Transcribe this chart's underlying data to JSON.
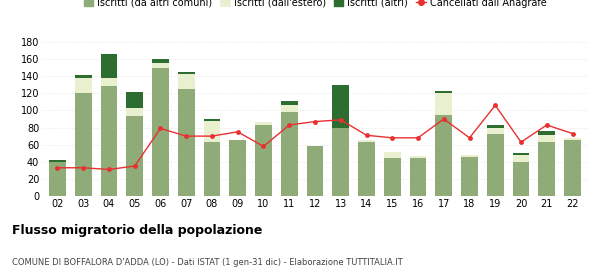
{
  "years": [
    "02",
    "03",
    "04",
    "05",
    "06",
    "07",
    "08",
    "09",
    "10",
    "11",
    "12",
    "13",
    "14",
    "15",
    "16",
    "17",
    "18",
    "19",
    "20",
    "21",
    "22"
  ],
  "iscritti_comuni": [
    40,
    120,
    128,
    93,
    150,
    125,
    63,
    65,
    83,
    98,
    58,
    80,
    63,
    44,
    45,
    95,
    46,
    72,
    40,
    63,
    65
  ],
  "iscritti_estero": [
    0,
    18,
    10,
    10,
    5,
    18,
    25,
    0,
    3,
    8,
    0,
    0,
    2,
    7,
    2,
    25,
    2,
    8,
    8,
    8,
    3
  ],
  "iscritti_altri": [
    2,
    3,
    28,
    18,
    5,
    2,
    2,
    0,
    0,
    5,
    0,
    50,
    0,
    0,
    0,
    3,
    0,
    3,
    2,
    5,
    0
  ],
  "cancellati": [
    33,
    33,
    31,
    35,
    79,
    70,
    70,
    75,
    58,
    83,
    87,
    89,
    71,
    68,
    68,
    90,
    68,
    106,
    63,
    83,
    73
  ],
  "color_comuni": "#8fac78",
  "color_estero": "#e8f0d0",
  "color_altri": "#2d6e30",
  "color_cancellati": "#e83030",
  "title": "Flusso migratorio della popolazione",
  "subtitle": "COMUNE DI BOFFALORA D'ADDA (LO) - Dati ISTAT (1 gen-31 dic) - Elaborazione TUTTITALIA.IT",
  "legend_labels": [
    "Iscritti (da altri comuni)",
    "Iscritti (dall'estero)",
    "Iscritti (altri)",
    "Cancellati dall’Anagrafe"
  ],
  "ylim": [
    0,
    180
  ],
  "yticks": [
    0,
    20,
    40,
    60,
    80,
    100,
    120,
    140,
    160,
    180
  ],
  "bg_color": "#ffffff",
  "grid_color": "#dddddd"
}
